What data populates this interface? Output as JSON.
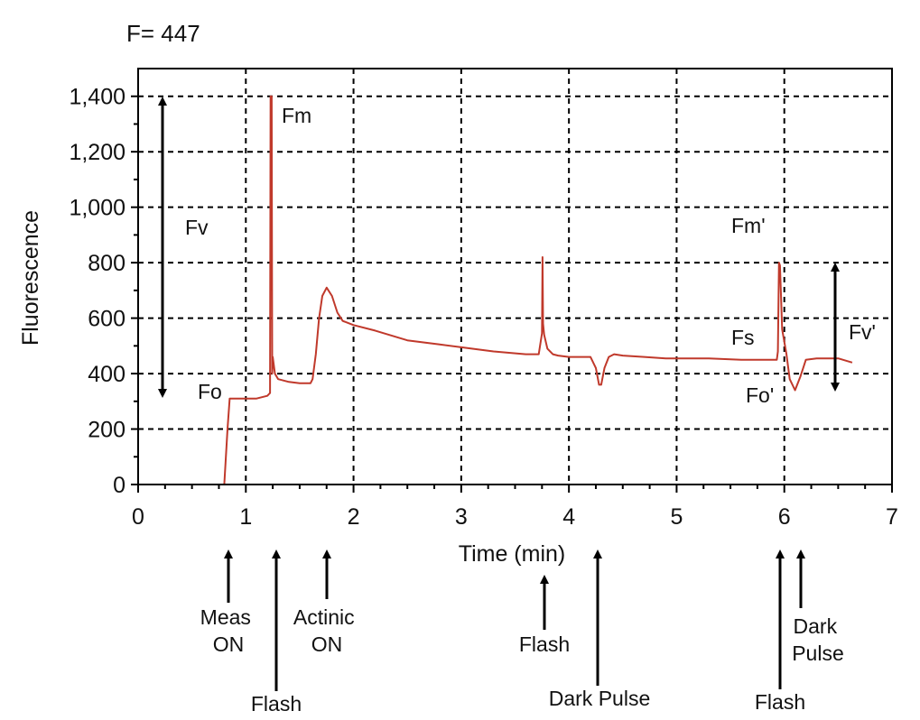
{
  "header": {
    "text": "F= 447"
  },
  "chart_data": {
    "type": "line",
    "title": "",
    "xlabel": "Time (min)",
    "ylabel": "Fluorescence",
    "xlim": [
      0,
      7
    ],
    "ylim": [
      0,
      1500
    ],
    "x_ticks": [
      0,
      1,
      2,
      3,
      4,
      5,
      6,
      7
    ],
    "y_ticks": [
      0,
      200,
      400,
      600,
      800,
      1000,
      1200,
      1400
    ],
    "y_tick_labels": [
      "0",
      "200",
      "400",
      "600",
      "800",
      "1,000",
      "1,200",
      "1,400"
    ],
    "grid": true,
    "line_color": "#c0392b",
    "series": [
      {
        "x": [
          0.8,
          0.83,
          0.85,
          0.9,
          1.0,
          1.1,
          1.2,
          1.225,
          1.23,
          1.24,
          1.245,
          1.25,
          1.27,
          1.3,
          1.4,
          1.5,
          1.6,
          1.62,
          1.65,
          1.68,
          1.71,
          1.75,
          1.8,
          1.85,
          1.9,
          2.0,
          2.2,
          2.5,
          2.8,
          3.0,
          3.3,
          3.6,
          3.72,
          3.75,
          3.755,
          3.76,
          3.77,
          3.8,
          3.85,
          3.9,
          4.0,
          4.1,
          4.2,
          4.25,
          4.28,
          4.3,
          4.33,
          4.37,
          4.42,
          4.5,
          4.7,
          4.9,
          5.1,
          5.3,
          5.6,
          5.85,
          5.93,
          5.94,
          5.95,
          5.96,
          5.98,
          6.02,
          6.05,
          6.1,
          6.15,
          6.2,
          6.3,
          6.5,
          6.63
        ],
        "y": [
          0,
          200,
          310,
          310,
          310,
          310,
          320,
          330,
          1400,
          1400,
          400,
          460,
          400,
          380,
          370,
          365,
          365,
          380,
          470,
          600,
          680,
          710,
          680,
          620,
          590,
          575,
          555,
          520,
          505,
          495,
          480,
          470,
          470,
          545,
          820,
          580,
          540,
          490,
          470,
          465,
          460,
          460,
          460,
          420,
          360,
          360,
          420,
          460,
          470,
          465,
          460,
          455,
          455,
          455,
          450,
          450,
          450,
          480,
          800,
          790,
          560,
          470,
          380,
          340,
          390,
          450,
          455,
          455,
          440
        ]
      }
    ],
    "annotations": {
      "fm": "Fm",
      "fv": "Fv",
      "fo": "Fo",
      "fm_prime": "Fm'",
      "fs": "Fs",
      "fv_prime": "Fv'",
      "fo_prime": "Fo'"
    },
    "events": [
      {
        "label": "Meas ON",
        "x": 0.85
      },
      {
        "label": "Flash",
        "x": 1.3
      },
      {
        "label": "Actinic ON",
        "x": 1.75
      },
      {
        "label": "Flash",
        "x": 3.75
      },
      {
        "label": "Dark Pulse",
        "x": 4.25
      },
      {
        "label": "Flash",
        "x": 5.96
      },
      {
        "label": "Dark Pulse",
        "x": 6.16
      }
    ]
  },
  "event_text": {
    "meas_on": [
      "Meas",
      "ON"
    ],
    "flash1": [
      "Flash"
    ],
    "actinic_on": [
      "Actinic",
      "ON"
    ],
    "flash2": [
      "Flash"
    ],
    "dark_pulse1": [
      "Dark Pulse"
    ],
    "flash3": [
      "Flash"
    ],
    "dark_pulse2": [
      "Dark",
      "Pulse"
    ]
  }
}
